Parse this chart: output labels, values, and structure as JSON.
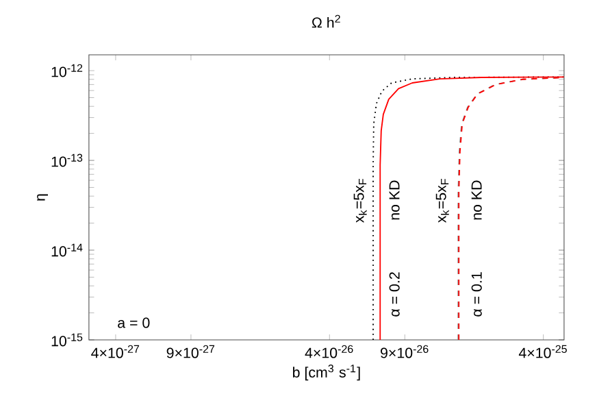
{
  "chart_data": {
    "type": "line",
    "title": "Ω h$^{2}$",
    "xlabel": "b [cm$^{3}$ s$^{-1}$]",
    "ylabel": "η",
    "log": "xy",
    "xlim": [
      3e-27,
      5e-25
    ],
    "ylim": [
      1e-15,
      1.5e-12
    ],
    "xticks": [
      {
        "value": 4e-27,
        "label": "4×10$^{-27}$"
      },
      {
        "value": 9e-27,
        "label": "9×10$^{-27}$"
      },
      {
        "value": 4e-26,
        "label": "4×10$^{-26}$"
      },
      {
        "value": 9e-26,
        "label": "9×10$^{-26}$"
      },
      {
        "value": 4e-25,
        "label": "4×10$^{-25}$"
      }
    ],
    "yticks": [
      {
        "value": 1e-15,
        "label": "10$^{-15}$"
      },
      {
        "value": 1e-14,
        "label": "10$^{-14}$"
      },
      {
        "value": 1e-13,
        "label": "10$^{-13}$"
      },
      {
        "value": 1e-12,
        "label": "10$^{-12}$"
      }
    ],
    "series": [
      {
        "color": "#000000",
        "line_style": "dotted",
        "x": [
          6.4e-26,
          6.4e-26,
          6.44e-26,
          6.63e-26,
          7.03e-26,
          7.8e-26,
          9.75e-26,
          1.52e-25,
          5e-25
        ],
        "values": [
          1e-15,
          8.9e-14,
          2.55e-13,
          4.3e-13,
          5.9e-13,
          7.3e-13,
          8.1e-13,
          8.4e-13,
          8.5e-13
        ]
      },
      {
        "color": "#ff0000",
        "line_style": "solid",
        "x": [
          6.9e-26,
          6.9e-26,
          6.98e-26,
          7.14e-26,
          7.57e-26,
          8.41e-26,
          9.75e-26,
          1.31e-25,
          2.05e-25,
          5e-25
        ],
        "values": [
          1e-15,
          8.9e-14,
          2.14e-13,
          3.26e-13,
          4.8e-13,
          6.3e-13,
          7.3e-13,
          8.1e-13,
          8.4e-13,
          8.5e-13
        ]
      },
      {
        "color": "#808080",
        "line_style": "dashed",
        "x": [
          1.6e-25,
          1.6e-25,
          1.62e-25,
          1.66e-25,
          1.77e-25,
          1.96e-25,
          2.38e-25,
          3.2e-25,
          5e-25
        ],
        "values": [
          1e-15,
          4.4e-14,
          1.26e-13,
          2.55e-13,
          3.9e-13,
          5.5e-13,
          7e-13,
          8e-13,
          8.4e-13
        ]
      },
      {
        "color": "#ff0000",
        "line_style": "dashed",
        "x": [
          1.61e-25,
          1.61e-25,
          1.63e-25,
          1.67e-25,
          1.78e-25,
          1.97e-25,
          2.4e-25,
          3.2e-25,
          5e-25
        ],
        "values": [
          1e-15,
          4.4e-14,
          1.26e-13,
          2.55e-13,
          3.9e-13,
          5.5e-13,
          7e-13,
          8e-13,
          8.4e-13
        ]
      }
    ],
    "annotations": [
      "x$_{k}$=5x$_{F}$",
      "no KD",
      "α = 0.2",
      "x$_{k}$=5x$_{F}$",
      "no KD",
      "α = 0.1",
      "a = 0"
    ]
  }
}
